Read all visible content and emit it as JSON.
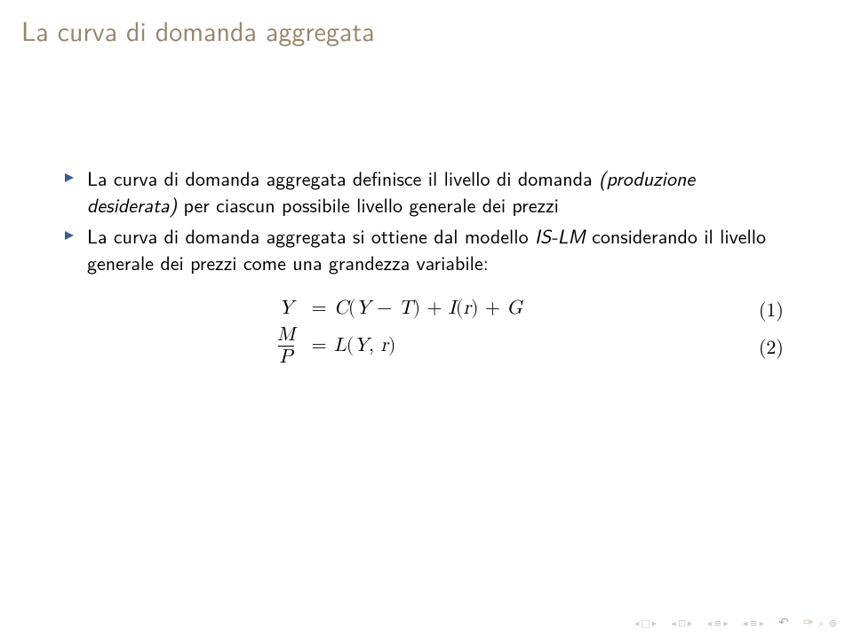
{
  "colors": {
    "title": "#98876d",
    "bullet_triangle": "#375f8f",
    "text": "#000000",
    "background": "#ffffff",
    "nav_pale": "#cfcfcf",
    "nav_accent": "#b8a89a"
  },
  "title": "La curva di domanda aggregata",
  "bullets": [
    {
      "text_html": "La curva di domanda aggregata definisce il livello di domanda <span class=\"italic\">(produzione desiderata)</span> per ciascun possibile livello generale dei prezzi"
    },
    {
      "text_html": "La curva di domanda aggregata si ottiene dal modello <span class=\"italic\">IS-LM</span> considerando il livello generale dei prezzi come una grandezza variabile:"
    }
  ],
  "equations": [
    {
      "lhs_type": "plain",
      "lhs": "Y",
      "rhs": "C(Y − T) + I(r) + G",
      "number": "(1)"
    },
    {
      "lhs_type": "frac",
      "lhs_num": "M",
      "lhs_den": "P",
      "rhs": "L(Y, r)",
      "number": "(2)"
    }
  ],
  "nav": {
    "groups": [
      {
        "left": "◂",
        "icon": "□",
        "right": "▸"
      },
      {
        "left": "◂",
        "icon": "⊡",
        "right": "▸"
      },
      {
        "left": "◂",
        "icon": "≡",
        "right": "▸"
      },
      {
        "left": "◂",
        "icon": "≡",
        "right": "▸"
      }
    ],
    "back": "↶",
    "swirl": "⟳"
  }
}
